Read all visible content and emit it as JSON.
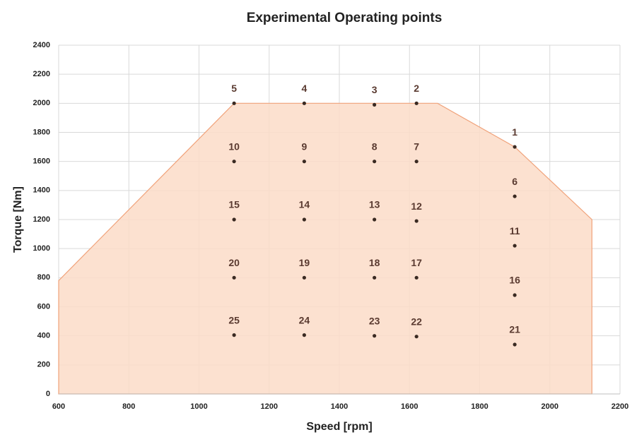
{
  "chart_data": {
    "type": "scatter",
    "title": "Experimental Operating points",
    "xlabel": "Speed [rpm]",
    "ylabel": "Torque [Nm]",
    "xlim": [
      600,
      2200
    ],
    "xticks": [
      600,
      800,
      1000,
      1200,
      1400,
      1600,
      1800,
      2000,
      2200
    ],
    "ylim": [
      0,
      2400
    ],
    "yticks": [
      0,
      200,
      400,
      600,
      800,
      1000,
      1200,
      1400,
      1600,
      1800,
      2000,
      2200,
      2400
    ],
    "grid": true,
    "envelope": {
      "color": "#fbdcc8",
      "edge_color": "#f0a27a",
      "x": [
        600,
        600,
        1100,
        1680,
        1900,
        2120,
        2120
      ],
      "y": [
        0,
        780,
        2000,
        2000,
        1700,
        1200,
        0
      ]
    },
    "points": {
      "color": "#3a2a22",
      "label_color": "#5a3a30",
      "labels": [
        "1",
        "2",
        "3",
        "4",
        "5",
        "6",
        "7",
        "8",
        "9",
        "10",
        "11",
        "12",
        "13",
        "14",
        "15",
        "16",
        "17",
        "18",
        "19",
        "20",
        "21",
        "22",
        "23",
        "24",
        "25"
      ],
      "x": [
        1900,
        1620,
        1500,
        1300,
        1100,
        1900,
        1620,
        1500,
        1300,
        1100,
        1900,
        1620,
        1500,
        1300,
        1100,
        1900,
        1620,
        1500,
        1300,
        1100,
        1900,
        1620,
        1500,
        1300,
        1100
      ],
      "y": [
        1700,
        2000,
        1990,
        2000,
        2000,
        1360,
        1600,
        1600,
        1600,
        1600,
        1020,
        1190,
        1200,
        1200,
        1200,
        680,
        800,
        800,
        800,
        800,
        340,
        395,
        400,
        405,
        405
      ]
    }
  }
}
